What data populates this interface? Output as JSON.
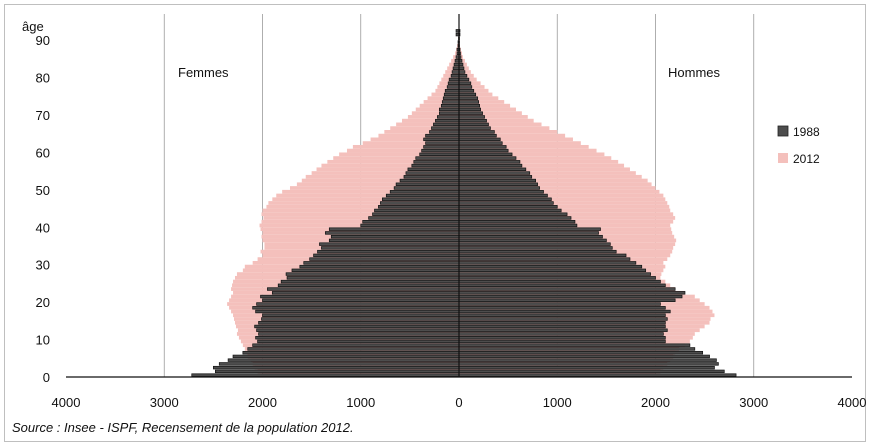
{
  "chart_data": {
    "type": "bar",
    "subtype": "population-pyramid",
    "ylabel": "âge",
    "left_label": "Femmes",
    "right_label": "Hommes",
    "x_ticks": [
      "4000",
      "3000",
      "2000",
      "1000",
      "0",
      "1000",
      "2000",
      "3000",
      "4000"
    ],
    "y_ticks": [
      "0",
      "10",
      "20",
      "30",
      "40",
      "50",
      "60",
      "70",
      "80",
      "90"
    ],
    "xlim": [
      -4000,
      4000
    ],
    "ylim": [
      0,
      97
    ],
    "grid": "vertical",
    "legend_position": "right",
    "age_step": 1,
    "series": [
      {
        "name": "1988",
        "color": "#4d4d4d",
        "ages_from": 0,
        "female": [
          2720,
          2480,
          2500,
          2440,
          2350,
          2300,
          2200,
          2150,
          2100,
          2050,
          2070,
          2040,
          2060,
          2080,
          2040,
          2010,
          2000,
          2070,
          2100,
          2060,
          2000,
          2020,
          1900,
          1950,
          1840,
          1810,
          1750,
          1760,
          1700,
          1620,
          1580,
          1520,
          1480,
          1440,
          1400,
          1420,
          1320,
          1300,
          1360,
          1320,
          1000,
          980,
          920,
          880,
          860,
          820,
          800,
          780,
          740,
          700,
          660,
          640,
          600,
          560,
          540,
          520,
          480,
          460,
          440,
          400,
          380,
          360,
          340,
          360,
          340,
          300,
          280,
          260,
          240,
          220,
          200,
          200,
          180,
          170,
          160,
          150,
          140,
          120,
          110,
          100,
          80,
          70,
          60,
          50,
          40,
          30,
          20,
          20,
          10,
          10,
          5,
          30,
          30
        ],
        "male": [
          2820,
          2700,
          2600,
          2640,
          2620,
          2550,
          2480,
          2400,
          2350,
          2100,
          2100,
          2080,
          2120,
          2100,
          2100,
          2120,
          2100,
          2150,
          2100,
          2050,
          2200,
          2270,
          2300,
          2200,
          2100,
          2050,
          2000,
          1950,
          1900,
          1860,
          1800,
          1740,
          1700,
          1600,
          1560,
          1540,
          1500,
          1460,
          1420,
          1440,
          1200,
          1180,
          1140,
          1100,
          1040,
          1000,
          960,
          940,
          900,
          860,
          820,
          800,
          780,
          740,
          720,
          680,
          640,
          620,
          580,
          540,
          500,
          480,
          440,
          420,
          380,
          360,
          320,
          300,
          280,
          260,
          240,
          220,
          210,
          200,
          190,
          170,
          150,
          130,
          120,
          100,
          80,
          60,
          50,
          40,
          30,
          20,
          15,
          10,
          5,
          5,
          5,
          10,
          10
        ]
      },
      {
        "name": "2012",
        "color": "#f4c0bc",
        "ages_from": 0,
        "female": [
          2000,
          2050,
          2080,
          2100,
          2120,
          2150,
          2160,
          2180,
          2200,
          2220,
          2240,
          2260,
          2250,
          2270,
          2280,
          2290,
          2300,
          2320,
          2340,
          2360,
          2340,
          2320,
          2300,
          2320,
          2310,
          2300,
          2280,
          2260,
          2200,
          2180,
          2100,
          2050,
          2000,
          2020,
          1980,
          1980,
          2000,
          2010,
          2000,
          2020,
          2030,
          2010,
          1990,
          2010,
          2000,
          1960,
          1940,
          1900,
          1860,
          1800,
          1720,
          1650,
          1600,
          1560,
          1500,
          1450,
          1400,
          1340,
          1280,
          1220,
          1140,
          1080,
          980,
          900,
          820,
          760,
          700,
          640,
          580,
          520,
          480,
          440,
          400,
          360,
          320,
          280,
          240,
          220,
          200,
          180,
          160,
          140,
          120,
          100,
          80,
          60,
          40,
          30,
          20,
          10,
          8,
          6,
          4
        ],
        "male": [
          2000,
          2050,
          2080,
          2120,
          2150,
          2180,
          2200,
          2240,
          2300,
          2350,
          2380,
          2400,
          2450,
          2500,
          2550,
          2560,
          2600,
          2580,
          2550,
          2500,
          2450,
          2400,
          2300,
          2200,
          2150,
          2100,
          2050,
          2060,
          2080,
          2100,
          2080,
          2120,
          2150,
          2170,
          2180,
          2200,
          2210,
          2190,
          2170,
          2160,
          2150,
          2180,
          2200,
          2180,
          2150,
          2140,
          2120,
          2100,
          2080,
          2040,
          2000,
          1960,
          1920,
          1860,
          1800,
          1740,
          1680,
          1620,
          1550,
          1480,
          1400,
          1320,
          1240,
          1160,
          1080,
          1000,
          920,
          840,
          760,
          700,
          640,
          580,
          520,
          460,
          400,
          340,
          300,
          260,
          220,
          180,
          150,
          120,
          100,
          80,
          60,
          40,
          30,
          20,
          10,
          8,
          6,
          4,
          2
        ]
      }
    ]
  },
  "source": "Source : Insee - ISPF, Recensement de la population 2012."
}
